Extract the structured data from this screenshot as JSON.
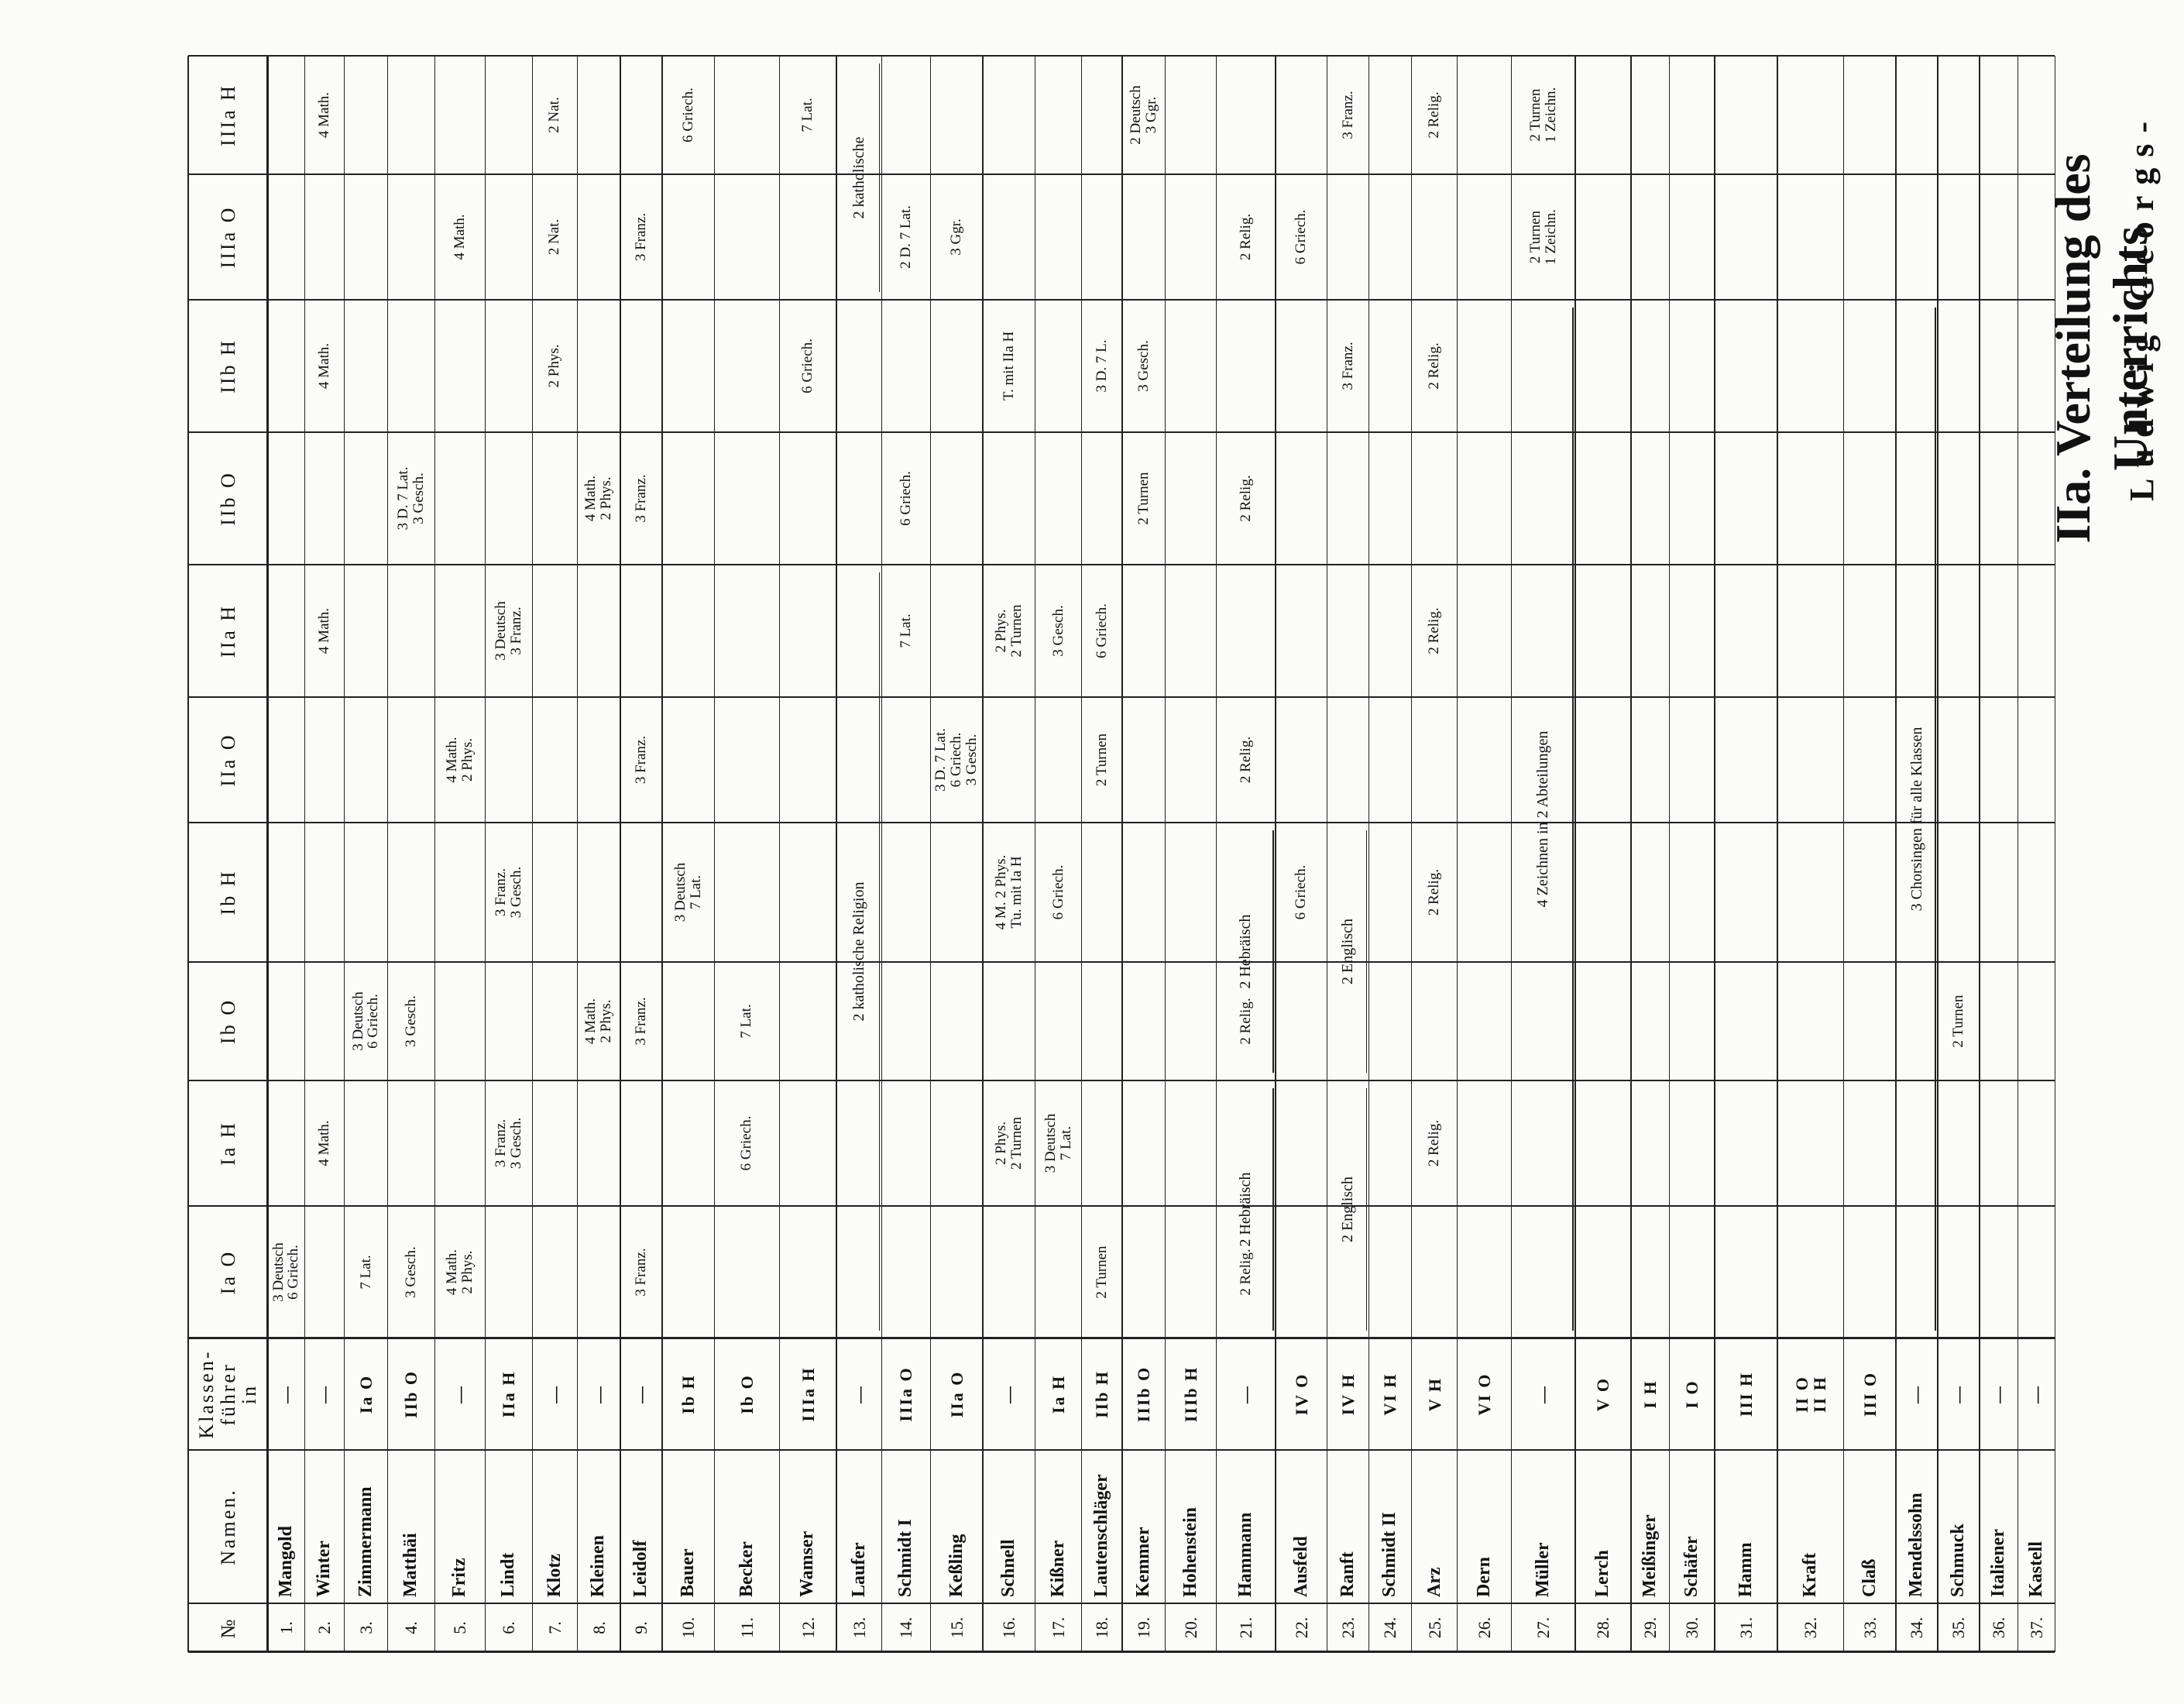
{
  "title": "IIa. Verteilung des Unterrichts",
  "subtitle": "Ludwig-Georgs-",
  "table": {
    "header": [
      "№",
      "Namen.",
      "Klassen-\nführer\nin",
      "Ia O",
      "Ia H",
      "Ib O",
      "Ib H",
      "IIa O",
      "IIa H",
      "IIb O",
      "IIb H",
      "IIIa O",
      "IIIa H"
    ],
    "rows": [
      {
        "nr": "1.",
        "name": "Mangold",
        "leader": "—",
        "cells": {
          "3": "3 Deutsch\n6 Griech."
        }
      },
      {
        "nr": "2.",
        "name": "Winter",
        "leader": "—",
        "cells": {
          "4": "4 Math.",
          "8": "4 Math.",
          "10": "4 Math.",
          "12": "4 Math."
        }
      },
      {
        "nr": "3.",
        "name": "Zimmermann",
        "leader": "Ia O",
        "cells": {
          "3": "7 Lat.",
          "5": "3 Deutsch\n6 Griech."
        }
      },
      {
        "nr": "4.",
        "name": "Matthäi",
        "leader": "IIb O",
        "cells": {
          "3": "3 Gesch.",
          "5": "3 Gesch.",
          "9": "3 D. 7 Lat.\n3 Gesch."
        }
      },
      {
        "nr": "5.",
        "name": "Fritz",
        "leader": "—",
        "cells": {
          "3": "4 Math.\n2 Phys.",
          "7": "4 Math.\n2 Phys.",
          "11": "4 Math."
        }
      },
      {
        "nr": "6.",
        "name": "Lindt",
        "leader": "IIa H",
        "cells": {
          "4": "3 Franz.\n3 Gesch.",
          "6": "3 Franz.\n3 Gesch.",
          "8": "3 Deutsch\n3 Franz."
        }
      },
      {
        "nr": "7.",
        "name": "Klotz",
        "leader": "—",
        "cells": {
          "10": "2 Phys.",
          "11": "2 Nat.",
          "12": "2 Nat."
        }
      },
      {
        "nr": "8.",
        "name": "Kleinen",
        "leader": "—",
        "cells": {
          "5": "4 Math.\n2 Phys.",
          "9": "4 Math.\n2 Phys."
        }
      },
      {
        "nr": "9.",
        "name": "Leidolf",
        "leader": "—",
        "cells": {
          "3": "3 Franz.",
          "5": "3 Franz.",
          "7": "3 Franz.",
          "9": "3 Franz.",
          "11": "3 Franz."
        }
      },
      {
        "nr": "10.",
        "name": "Bauer",
        "leader": "Ib H",
        "cells": {
          "6": "3 Deutsch\n7 Lat.",
          "12": "6 Griech."
        }
      },
      {
        "nr": "11.",
        "name": "Becker",
        "leader": "Ib O",
        "cells": {
          "4": "6 Griech.",
          "5": "7 Lat."
        }
      },
      {
        "nr": "12.",
        "name": "Wamser",
        "leader": "IIIa H",
        "cells": {
          "10": "6 Griech.",
          "12": "7 Lat."
        }
      },
      {
        "nr": "13.",
        "name": "Laufer",
        "leader": "—",
        "cells": {}
      },
      {
        "nr": "14.",
        "name": "Schmidt I",
        "leader": "IIIa O",
        "cells": {
          "8": "7 Lat.",
          "9": "6 Griech.",
          "11": "2 D. 7 Lat."
        }
      },
      {
        "nr": "15.",
        "name": "Keßling",
        "leader": "IIa O",
        "cells": {
          "7": "3 D. 7 Lat.\n6 Griech.\n3 Gesch.",
          "11": "3 Ggr."
        }
      },
      {
        "nr": "16.",
        "name": "Schnell",
        "leader": "—",
        "cells": {
          "4": "2 Phys.\n2 Turnen",
          "6": "4 M. 2 Phys.\nTu. mit Ia H",
          "8": "2 Phys.\n2 Turnen",
          "10": "T. mit IIa H"
        }
      },
      {
        "nr": "17.",
        "name": "Kißner",
        "leader": "Ia H",
        "cells": {
          "4": "3 Deutsch\n7 Lat.",
          "6": "6 Griech.",
          "8": "3 Gesch."
        }
      },
      {
        "nr": "18.",
        "name": "Lautenschläger",
        "leader": "IIb H",
        "cells": {
          "3": "2 Turnen",
          "7": "2 Turnen",
          "8": "6 Griech.",
          "10": "3 D. 7 L."
        }
      },
      {
        "nr": "19.",
        "name": "Kemmer",
        "leader": "IIIb O",
        "cells": {
          "9": "2 Turnen",
          "10": "3 Gesch.",
          "12": "2 Deutsch\n3 Ggr."
        }
      },
      {
        "nr": "20.",
        "name": "Hohenstein",
        "leader": "IIIb H",
        "cells": {}
      },
      {
        "nr": "21.",
        "name": "Hammann",
        "leader": "—",
        "cells": {
          "3": "2 Relig.",
          "5": "2 Relig.",
          "7": "2 Relig.",
          "9": "2 Relig.",
          "11": "2 Relig."
        }
      },
      {
        "nr": "22.",
        "name": "Ausfeld",
        "leader": "IV O",
        "cells": {
          "6": "6 Griech.",
          "11": "6 Griech."
        }
      },
      {
        "nr": "23.",
        "name": "Ranft",
        "leader": "IV H",
        "cells": {
          "10": "3 Franz.",
          "12": "3 Franz."
        }
      },
      {
        "nr": "24.",
        "name": "Schmidt II",
        "leader": "VI H",
        "cells": {}
      },
      {
        "nr": "25.",
        "name": "Arz",
        "leader": "V H",
        "cells": {
          "4": "2 Relig.",
          "6": "2 Relig.",
          "8": "2 Relig.",
          "10": "2 Relig.",
          "12": "2 Relig."
        }
      },
      {
        "nr": "26.",
        "name": "Dern",
        "leader": "VI O",
        "cells": {}
      },
      {
        "nr": "27.",
        "name": "Müller",
        "leader": "—",
        "cells": {
          "11": "2 Turnen\n1 Zeichn.",
          "12": "2 Turnen\n1 Zeichn."
        }
      },
      {
        "nr": "28.",
        "name": "Lerch",
        "leader": "V O",
        "cells": {}
      },
      {
        "nr": "29.",
        "name": "Meißinger",
        "leader": "I H",
        "cells": {}
      },
      {
        "nr": "30.",
        "name": "Schäfer",
        "leader": "I O",
        "cells": {}
      },
      {
        "nr": "31.",
        "name": "Hamm",
        "leader": "III H",
        "cells": {}
      },
      {
        "nr": "32.",
        "name": "Kraft",
        "leader": "II O\nII H",
        "cells": {}
      },
      {
        "nr": "33.",
        "name": "Claß",
        "leader": "III O",
        "cells": {}
      },
      {
        "nr": "34.",
        "name": "Mendelssohn",
        "leader": "—",
        "cells": {}
      },
      {
        "nr": "35.",
        "name": "Schmuck",
        "leader": "—",
        "cells": {
          "5": "2 Turnen"
        }
      },
      {
        "nr": "36.",
        "name": "Italiener",
        "leader": "—",
        "cells": {}
      },
      {
        "nr": "37.",
        "name": "Kastell",
        "leader": "—",
        "cells": {}
      }
    ],
    "notes": [
      "2 katholische Religion",
      "2 katholische",
      "2 Hebräisch",
      "2 Hebräisch",
      "2 Englisch",
      "2 Englisch",
      "4 Zeichnen in 2 Abteilungen",
      "3 Chorsingen für alle Klassen"
    ]
  }
}
